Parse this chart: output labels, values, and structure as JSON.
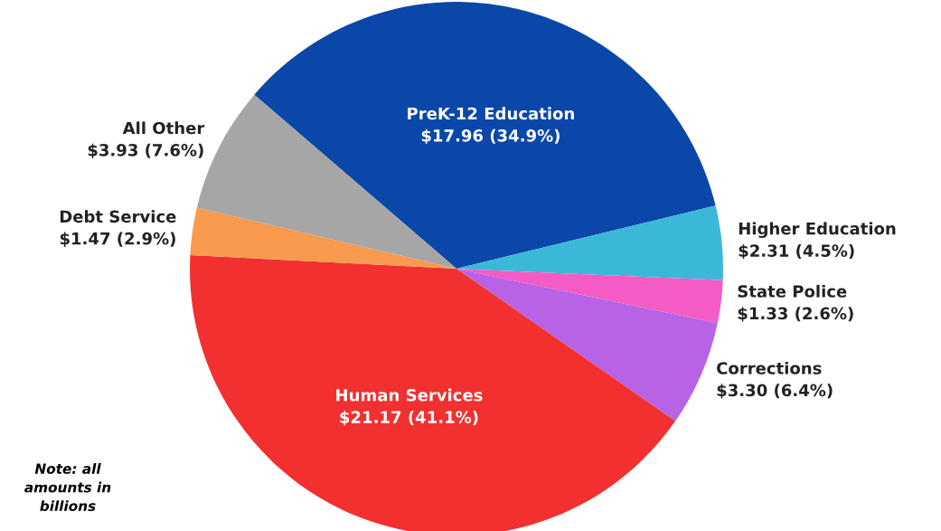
{
  "chart_data": {
    "type": "pie",
    "categories": [
      "PreK-12 Education",
      "Higher Education",
      "State Police",
      "Corrections",
      "Human Services",
      "Debt Service",
      "All Other"
    ],
    "values": [
      17.96,
      2.31,
      1.33,
      3.3,
      21.17,
      1.47,
      3.93
    ],
    "colors": [
      "#0a47a8",
      "#3bb8d8",
      "#f25cc4",
      "#b862e6",
      "#f23030",
      "#f99a4e",
      "#a6a6a6"
    ],
    "value_labels": [
      "$17.96 (34.9%)",
      "$2.31 (4.5%)",
      "$1.33 (2.6%)",
      "$3.30 (6.4%)",
      "$21.17 (41.1%)",
      "$1.47 (2.9%)",
      "$3.93 (7.6%)"
    ],
    "annotations": [
      "Note: all\namounts in\nbillions"
    ],
    "legend": false
  }
}
